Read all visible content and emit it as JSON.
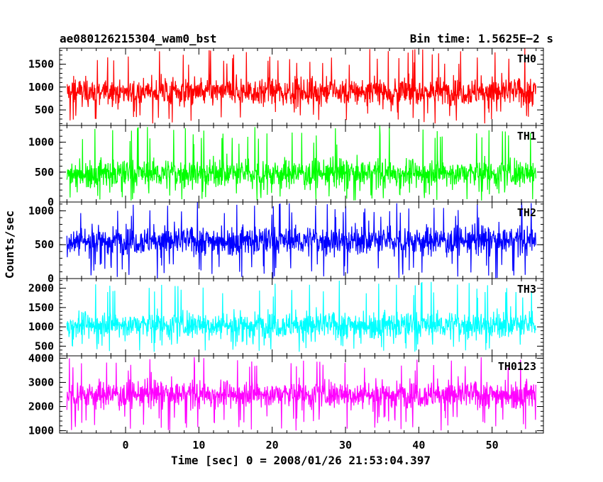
{
  "header": {
    "left": "ae080126215304_wam0_bst",
    "right": "Bin time: 1.5625E−2 s"
  },
  "chart_data": {
    "type": "line",
    "title": "ae080126215304_wam0_bst",
    "subtitle": "Bin time: 1.5625E−2 s",
    "xlabel": "Time [sec] 0 = 2008/01/26 21:53:04.397",
    "ylabel": "Counts/sec",
    "xlim": [
      -9,
      57
    ],
    "data_x_range": [
      -8,
      56
    ],
    "x_ticks": [
      0,
      10,
      20,
      30,
      40,
      50
    ],
    "x_tick_labels": [
      "0",
      "10",
      "20",
      "30",
      "40",
      "50"
    ],
    "grid": false,
    "panels": [
      {
        "name": "TH0",
        "color": "#ff0000",
        "ylim": [
          160,
          1850
        ],
        "y_ticks": [
          500,
          1000,
          1500
        ],
        "y_tick_labels": [
          "500",
          "1000",
          "1500"
        ],
        "approx_mean": 900,
        "approx_min": 200,
        "approx_max": 1850
      },
      {
        "name": "TH1",
        "color": "#00ff00",
        "ylim": [
          0,
          1280
        ],
        "y_ticks": [
          0,
          500,
          1000
        ],
        "y_tick_labels": [
          "0",
          "500",
          "1000"
        ],
        "approx_mean": 480,
        "approx_min": 20,
        "approx_max": 1280
      },
      {
        "name": "TH2",
        "color": "#0000ff",
        "ylim": [
          0,
          1130
        ],
        "y_ticks": [
          0,
          500,
          1000
        ],
        "y_tick_labels": [
          "0",
          "500",
          "1000"
        ],
        "approx_mean": 560,
        "approx_min": 0,
        "approx_max": 1130
      },
      {
        "name": "TH3",
        "color": "#00ffff",
        "ylim": [
          250,
          2250
        ],
        "y_ticks": [
          500,
          1000,
          1500,
          2000
        ],
        "y_tick_labels": [
          "500",
          "1000",
          "1500",
          "2000"
        ],
        "approx_mean": 1050,
        "approx_min": 350,
        "approx_max": 2200
      },
      {
        "name": "TH0123",
        "color": "#ff00ff",
        "ylim": [
          900,
          4100
        ],
        "y_ticks": [
          1000,
          2000,
          3000,
          4000
        ],
        "y_tick_labels": [
          "1000",
          "2000",
          "3000",
          "4000"
        ],
        "approx_mean": 2500,
        "approx_min": 1000,
        "approx_max": 4050
      }
    ]
  }
}
